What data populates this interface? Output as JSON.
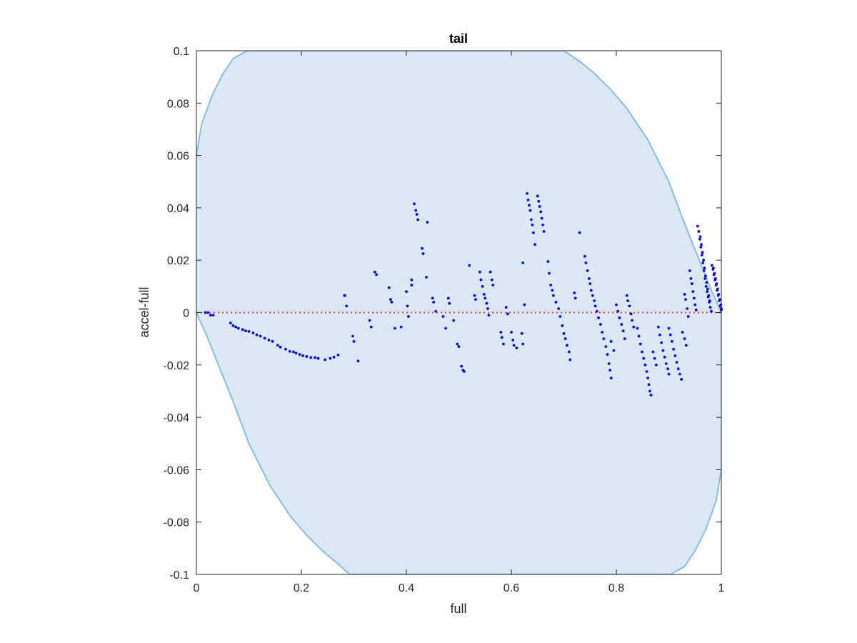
{
  "chart_data": {
    "type": "scatter",
    "title": "tail",
    "xlabel": "full",
    "ylabel": "accel-full",
    "xlim": [
      0,
      1
    ],
    "ylim": [
      -0.1,
      0.1
    ],
    "xticks": [
      0,
      0.2,
      0.4,
      0.6,
      0.8,
      1
    ],
    "xtick_labels": [
      "0",
      "0.2",
      "0.4",
      "0.6",
      "0.8",
      "1"
    ],
    "yticks": [
      -0.1,
      -0.08,
      -0.06,
      -0.04,
      -0.02,
      0,
      0.02,
      0.04,
      0.06,
      0.08,
      0.1
    ],
    "ytick_labels": [
      "-0.1",
      "-0.08",
      "-0.06",
      "-0.04",
      "-0.02",
      "0",
      "0.02",
      "0.04",
      "0.06",
      "0.08",
      "0.1"
    ],
    "grid": false,
    "colors": {
      "points": "#0000ee",
      "zero_line": "#ff3333",
      "region_fill": "#d9e8f4",
      "region_edge": "#86bde0",
      "axes": "#262626"
    },
    "envelope": {
      "description_of_shape": "ellipse",
      "upper": [
        [
          0,
          0.06
        ],
        [
          0.01,
          0.072
        ],
        [
          0.03,
          0.083
        ],
        [
          0.05,
          0.091
        ],
        [
          0.07,
          0.097
        ],
        [
          0.097,
          0.1
        ],
        [
          0.7,
          0.1
        ],
        [
          0.73,
          0.096
        ],
        [
          0.76,
          0.091
        ],
        [
          0.79,
          0.085
        ],
        [
          0.82,
          0.078
        ],
        [
          0.86,
          0.066
        ],
        [
          0.9,
          0.05
        ],
        [
          0.93,
          0.034
        ],
        [
          0.96,
          0.019
        ],
        [
          0.98,
          0.009
        ],
        [
          1,
          0
        ]
      ],
      "lower": [
        [
          0,
          0
        ],
        [
          0.02,
          -0.009
        ],
        [
          0.04,
          -0.019
        ],
        [
          0.07,
          -0.034
        ],
        [
          0.1,
          -0.05
        ],
        [
          0.14,
          -0.066
        ],
        [
          0.18,
          -0.078
        ],
        [
          0.21,
          -0.085
        ],
        [
          0.24,
          -0.091
        ],
        [
          0.27,
          -0.096
        ],
        [
          0.292,
          -0.1
        ],
        [
          0.903,
          -0.1
        ],
        [
          0.93,
          -0.097
        ],
        [
          0.95,
          -0.091
        ],
        [
          0.97,
          -0.083
        ],
        [
          0.99,
          -0.072
        ],
        [
          1,
          -0.06
        ]
      ]
    },
    "series": [
      {
        "points": [
          [
            0.017,
            0.0
          ],
          [
            0.022,
            0.0
          ],
          [
            0.027,
            -0.001
          ],
          [
            0.032,
            -0.001
          ],
          [
            0.065,
            -0.004
          ],
          [
            0.07,
            -0.005
          ],
          [
            0.075,
            -0.0055
          ],
          [
            0.08,
            -0.006
          ],
          [
            0.088,
            -0.0065
          ],
          [
            0.094,
            -0.007
          ],
          [
            0.1,
            -0.0072
          ],
          [
            0.108,
            -0.0078
          ],
          [
            0.115,
            -0.0085
          ],
          [
            0.122,
            -0.009
          ],
          [
            0.13,
            -0.0098
          ],
          [
            0.138,
            -0.0105
          ],
          [
            0.145,
            -0.011
          ],
          [
            0.155,
            -0.0125
          ],
          [
            0.16,
            -0.0132
          ],
          [
            0.17,
            -0.014
          ],
          [
            0.178,
            -0.0148
          ],
          [
            0.185,
            -0.015
          ],
          [
            0.19,
            -0.0155
          ],
          [
            0.197,
            -0.016
          ],
          [
            0.203,
            -0.0165
          ],
          [
            0.21,
            -0.0168
          ],
          [
            0.218,
            -0.0172
          ],
          [
            0.226,
            -0.0172
          ],
          [
            0.232,
            -0.0175
          ],
          [
            0.245,
            -0.018
          ],
          [
            0.255,
            -0.0175
          ],
          [
            0.262,
            -0.017
          ],
          [
            0.27,
            -0.0162
          ],
          [
            0.282,
            0.0065
          ],
          [
            0.283,
            0.0065
          ],
          [
            0.286,
            0.0025
          ],
          [
            0.298,
            -0.009
          ],
          [
            0.3,
            -0.011
          ],
          [
            0.308,
            -0.0185
          ],
          [
            0.33,
            -0.003
          ],
          [
            0.333,
            -0.0055
          ],
          [
            0.34,
            0.0155
          ],
          [
            0.343,
            0.0145
          ],
          [
            0.367,
            0.0095
          ],
          [
            0.37,
            0.005
          ],
          [
            0.372,
            0.004
          ],
          [
            0.378,
            -0.006
          ],
          [
            0.39,
            -0.0055
          ],
          [
            0.4,
            0.008
          ],
          [
            0.402,
            0.0025
          ],
          [
            0.404,
            -0.0015
          ],
          [
            0.41,
            0.0125
          ],
          [
            0.41,
            0.0105
          ],
          [
            0.415,
            0.0415
          ],
          [
            0.418,
            0.039
          ],
          [
            0.42,
            0.0375
          ],
          [
            0.422,
            0.0355
          ],
          [
            0.43,
            0.0245
          ],
          [
            0.432,
            0.0225
          ],
          [
            0.438,
            0.0135
          ],
          [
            0.44,
            0.0345
          ],
          [
            0.45,
            0.0055
          ],
          [
            0.452,
            0.004
          ],
          [
            0.456,
            0.0005
          ],
          [
            0.47,
            -0.0015
          ],
          [
            0.475,
            -0.006
          ],
          [
            0.48,
            0.0055
          ],
          [
            0.482,
            0.0035
          ],
          [
            0.49,
            -0.003
          ],
          [
            0.497,
            -0.012
          ],
          [
            0.5,
            -0.013
          ],
          [
            0.505,
            -0.0205
          ],
          [
            0.508,
            -0.022
          ],
          [
            0.51,
            -0.0225
          ],
          [
            0.52,
            0.018
          ],
          [
            0.53,
            0.0065
          ],
          [
            0.532,
            0.005
          ],
          [
            0.54,
            0.0155
          ],
          [
            0.542,
            0.0125
          ],
          [
            0.545,
            0.01
          ],
          [
            0.548,
            0.007
          ],
          [
            0.55,
            0.0055
          ],
          [
            0.553,
            0.0035
          ],
          [
            0.555,
            0.0015
          ],
          [
            0.557,
            -0.001
          ],
          [
            0.56,
            0.0155
          ],
          [
            0.563,
            0.0125
          ],
          [
            0.565,
            0.0105
          ],
          [
            0.58,
            -0.0075
          ],
          [
            0.582,
            -0.0095
          ],
          [
            0.585,
            -0.012
          ],
          [
            0.59,
            0.002
          ],
          [
            0.593,
            -0.0005
          ],
          [
            0.6,
            -0.0075
          ],
          [
            0.603,
            -0.0105
          ],
          [
            0.605,
            -0.0125
          ],
          [
            0.61,
            -0.0135
          ],
          [
            0.62,
            -0.008
          ],
          [
            0.622,
            -0.012
          ],
          [
            0.622,
            0.019
          ],
          [
            0.625,
            0.003
          ],
          [
            0.63,
            0.0455
          ],
          [
            0.632,
            0.043
          ],
          [
            0.634,
            0.041
          ],
          [
            0.636,
            0.039
          ],
          [
            0.638,
            0.0355
          ],
          [
            0.64,
            0.0335
          ],
          [
            0.642,
            0.0305
          ],
          [
            0.645,
            0.026
          ],
          [
            0.65,
            0.0445
          ],
          [
            0.652,
            0.0425
          ],
          [
            0.654,
            0.0405
          ],
          [
            0.656,
            0.0385
          ],
          [
            0.658,
            0.036
          ],
          [
            0.66,
            0.0335
          ],
          [
            0.662,
            0.031
          ],
          [
            0.67,
            0.0195
          ],
          [
            0.672,
            0.015
          ],
          [
            0.675,
            0.0105
          ],
          [
            0.678,
            0.0085
          ],
          [
            0.68,
            0.0065
          ],
          [
            0.685,
            0.004
          ],
          [
            0.69,
            0.0015
          ],
          [
            0.693,
            -0.0015
          ],
          [
            0.697,
            -0.005
          ],
          [
            0.7,
            -0.008
          ],
          [
            0.703,
            -0.01
          ],
          [
            0.706,
            -0.0125
          ],
          [
            0.71,
            -0.015
          ],
          [
            0.712,
            -0.018
          ],
          [
            0.72,
            0.0075
          ],
          [
            0.722,
            0.0055
          ],
          [
            0.73,
            0.0305
          ],
          [
            0.74,
            0.0215
          ],
          [
            0.742,
            0.019
          ],
          [
            0.745,
            0.016
          ],
          [
            0.748,
            0.013
          ],
          [
            0.75,
            0.011
          ],
          [
            0.752,
            0.0085
          ],
          [
            0.755,
            0.0065
          ],
          [
            0.758,
            0.0045
          ],
          [
            0.76,
            0.0025
          ],
          [
            0.763,
            0.0005
          ],
          [
            0.766,
            -0.002
          ],
          [
            0.77,
            -0.0045
          ],
          [
            0.773,
            -0.0075
          ],
          [
            0.776,
            -0.01
          ],
          [
            0.78,
            -0.013
          ],
          [
            0.783,
            -0.016
          ],
          [
            0.786,
            -0.0195
          ],
          [
            0.788,
            -0.022
          ],
          [
            0.79,
            -0.025
          ],
          [
            0.79,
            -0.011
          ],
          [
            0.795,
            -0.0145
          ],
          [
            0.8,
            0.003
          ],
          [
            0.803,
            0.0005
          ],
          [
            0.806,
            -0.002
          ],
          [
            0.81,
            -0.0045
          ],
          [
            0.813,
            -0.007
          ],
          [
            0.816,
            -0.01
          ],
          [
            0.82,
            0.0065
          ],
          [
            0.822,
            0.0045
          ],
          [
            0.825,
            0.0025
          ],
          [
            0.828,
            -0.0005
          ],
          [
            0.83,
            -0.003
          ],
          [
            0.833,
            -0.0055
          ],
          [
            0.84,
            -0.006
          ],
          [
            0.843,
            -0.009
          ],
          [
            0.846,
            -0.012
          ],
          [
            0.849,
            -0.015
          ],
          [
            0.852,
            -0.0175
          ],
          [
            0.855,
            -0.02
          ],
          [
            0.858,
            -0.0225
          ],
          [
            0.86,
            -0.025
          ],
          [
            0.862,
            -0.0275
          ],
          [
            0.864,
            -0.03
          ],
          [
            0.866,
            -0.0315
          ],
          [
            0.87,
            -0.015
          ],
          [
            0.873,
            -0.0175
          ],
          [
            0.876,
            -0.02
          ],
          [
            0.88,
            -0.0055
          ],
          [
            0.883,
            -0.0085
          ],
          [
            0.886,
            -0.0115
          ],
          [
            0.889,
            -0.0145
          ],
          [
            0.892,
            -0.017
          ],
          [
            0.895,
            -0.0195
          ],
          [
            0.898,
            -0.0215
          ],
          [
            0.9,
            -0.0235
          ],
          [
            0.9,
            -0.006
          ],
          [
            0.903,
            -0.0085
          ],
          [
            0.906,
            -0.011
          ],
          [
            0.909,
            -0.014
          ],
          [
            0.912,
            -0.0165
          ],
          [
            0.915,
            -0.019
          ],
          [
            0.918,
            -0.0215
          ],
          [
            0.921,
            -0.0235
          ],
          [
            0.924,
            -0.0255
          ],
          [
            0.926,
            -0.0075
          ],
          [
            0.93,
            -0.01
          ],
          [
            0.933,
            -0.0125
          ],
          [
            0.93,
            0.007
          ],
          [
            0.932,
            0.005
          ],
          [
            0.935,
            0.0015
          ],
          [
            0.937,
            -0.0015
          ],
          [
            0.94,
            0.016
          ],
          [
            0.942,
            0.013
          ],
          [
            0.944,
            0.011
          ],
          [
            0.946,
            0.008
          ],
          [
            0.948,
            0.0055
          ],
          [
            0.95,
            0.003
          ],
          [
            0.952,
            0.001
          ],
          [
            0.955,
            0.033
          ],
          [
            0.957,
            0.031
          ],
          [
            0.959,
            0.028
          ],
          [
            0.961,
            0.025
          ],
          [
            0.963,
            0.022
          ],
          [
            0.965,
            0.019
          ],
          [
            0.967,
            0.016
          ],
          [
            0.969,
            0.013
          ],
          [
            0.971,
            0.01
          ],
          [
            0.973,
            0.008
          ],
          [
            0.975,
            0.006
          ],
          [
            0.977,
            0.004
          ],
          [
            0.979,
            0.002
          ],
          [
            0.981,
            0.0005
          ],
          [
            0.96,
            0.029
          ],
          [
            0.962,
            0.026
          ],
          [
            0.964,
            0.023
          ],
          [
            0.966,
            0.02
          ],
          [
            0.968,
            0.017
          ],
          [
            0.97,
            0.014
          ],
          [
            0.972,
            0.0115
          ],
          [
            0.974,
            0.009
          ],
          [
            0.976,
            0.0065
          ],
          [
            0.978,
            0.0045
          ],
          [
            0.982,
            0.018
          ],
          [
            0.984,
            0.0165
          ],
          [
            0.986,
            0.0145
          ],
          [
            0.988,
            0.0125
          ],
          [
            0.99,
            0.0105
          ],
          [
            0.992,
            0.0085
          ],
          [
            0.994,
            0.0065
          ],
          [
            0.996,
            0.0045
          ],
          [
            0.998,
            0.0025
          ],
          [
            1.0,
            0.001
          ],
          [
            0.985,
            0.017
          ],
          [
            0.987,
            0.015
          ],
          [
            0.989,
            0.013
          ],
          [
            0.991,
            0.011
          ],
          [
            0.993,
            0.009
          ],
          [
            0.995,
            0.007
          ],
          [
            0.997,
            0.005
          ],
          [
            0.999,
            0.003
          ],
          [
            1.0,
            0.0015
          ]
        ]
      }
    ]
  }
}
